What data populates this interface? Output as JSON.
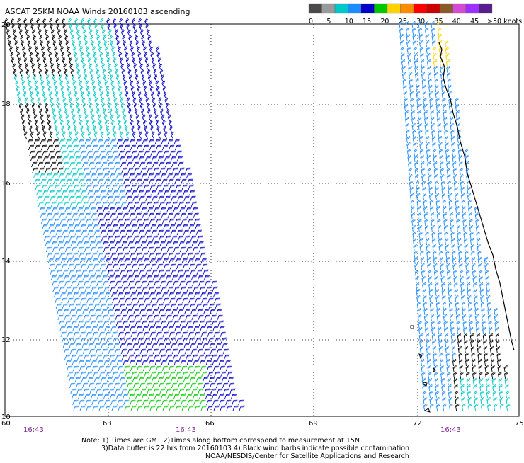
{
  "title": "ASCAT 25KM NOAA Winds 20160103 ascending",
  "legend": {
    "units": ">50 knots",
    "labels": [
      "0",
      "5",
      "10",
      "15",
      "20",
      "25",
      "30",
      "35",
      "40",
      "45"
    ],
    "colors": [
      "#4a4a4a",
      "#9a9a9a",
      "#00c8c8",
      "#1e8cff",
      "#0000c8",
      "#00c800",
      "#ffd200",
      "#ff8c00",
      "#ff0000",
      "#cc0000",
      "#8b5a2b",
      "#d24bd2",
      "#9b30ff",
      "#5a1e8c"
    ]
  },
  "axes": {
    "lon_ticks": [
      "60",
      "63",
      "66",
      "69",
      "72",
      "75"
    ],
    "lat_ticks": [
      "20",
      "18",
      "16",
      "14",
      "12",
      "10"
    ]
  },
  "pass_times": [
    "16:43",
    "16:43",
    "16:43"
  ],
  "notes": [
    "Note: 1) Times are GMT 2)Times along bottom correspond to measurement at 15N",
    "3)Data buffer is 22 hrs from 20160103 4) Black wind barbs indicate possible contamination",
    "NOAA/NESDIS/Center for Satellite Applications and Research"
  ],
  "wind_colors": {
    "contaminated": "#000000",
    "speed_5_10": "#00c8c8",
    "speed_10_15": "#1e8cff",
    "speed_15_20": "#0000c8",
    "speed_20_25": "#00c800",
    "speed_25_30": "#ffd200"
  }
}
